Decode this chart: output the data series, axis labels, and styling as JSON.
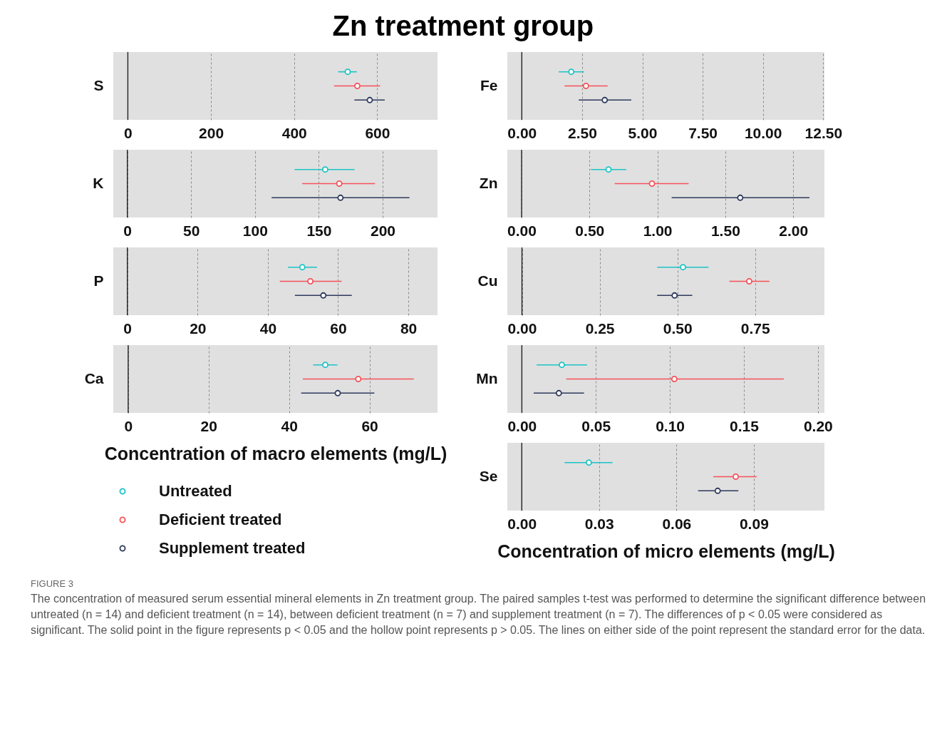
{
  "chart_data": [
    {
      "type": "scatter",
      "orientation": "horizontal",
      "title": "Zn treatment group",
      "annotations": [
        "FIGURE 3",
        "The concentration of measured serum essential mineral elements in Zn treatment group. The paired samples t-test was performed to determine the significant difference between untreated (n = 14) and deficient treatment (n = 14), between deficient treatment (n = 7) and supplement treatment (n = 7). The differences of p < 0.05 were considered as significant. The solid point in the figure represents p < 0.05 and the hollow point represents p > 0.05. The lines on either side of the point represent the standard error for the data."
      ],
      "categories": [
        "S"
      ],
      "marker": "circle",
      "grid": "x",
      "xlim": [
        -35,
        745
      ],
      "xticks": [
        0,
        200,
        400,
        600
      ],
      "ref_lines": [
        {
          "axis": "x",
          "value": 0
        }
      ],
      "legend": "bottom left",
      "series": [
        {
          "name": "Untreated",
          "color": "#1cc3c5",
          "values": [
            529
          ],
          "errors": [
            [
              506,
              551
            ]
          ]
        },
        {
          "name": "Deficient treated",
          "color": "#f5525a",
          "values": [
            552
          ],
          "errors": [
            [
              496,
              607
            ]
          ]
        },
        {
          "name": "Supplement treated",
          "color": "#2e3a5c",
          "values": [
            582
          ],
          "errors": [
            [
              545,
              618
            ]
          ]
        }
      ]
    },
    {
      "type": "scatter",
      "orientation": "horizontal",
      "categories": [
        "K"
      ],
      "marker": "circle",
      "grid": "x",
      "xlim": [
        -11,
        243
      ],
      "xticks": [
        0,
        50,
        100,
        150,
        200
      ],
      "ref_lines": [
        {
          "axis": "x",
          "value": 0
        }
      ],
      "series": [
        {
          "color": "#1cc3c5",
          "values": [
            155
          ],
          "errors": [
            [
              131,
              178
            ]
          ]
        },
        {
          "color": "#f5525a",
          "values": [
            166
          ],
          "errors": [
            [
              137,
              194
            ]
          ]
        },
        {
          "color": "#2e3a5c",
          "values": [
            167
          ],
          "errors": [
            [
              113,
              221
            ]
          ]
        }
      ]
    },
    {
      "type": "scatter",
      "orientation": "horizontal",
      "categories": [
        "P"
      ],
      "marker": "circle",
      "grid": "x",
      "xlim": [
        -4,
        88.3
      ],
      "xticks": [
        0,
        20,
        40,
        60,
        80
      ],
      "ref_lines": [
        {
          "axis": "x",
          "value": 0
        }
      ],
      "series": [
        {
          "color": "#1cc3c5",
          "values": [
            49.8
          ],
          "errors": [
            [
              45.7,
              54
            ]
          ]
        },
        {
          "color": "#f5525a",
          "values": [
            52.1
          ],
          "errors": [
            [
              43.4,
              61
            ]
          ]
        },
        {
          "color": "#2e3a5c",
          "values": [
            55.8
          ],
          "errors": [
            [
              47.7,
              63.9
            ]
          ]
        }
      ]
    },
    {
      "type": "scatter",
      "orientation": "horizontal",
      "categories": [
        "Ca"
      ],
      "marker": "circle",
      "grid": "x",
      "xlim": [
        -3.7,
        76.9
      ],
      "xticks": [
        0,
        20,
        40,
        60
      ],
      "ref_lines": [
        {
          "axis": "x",
          "value": 0
        }
      ],
      "xlabel": "Concentration of macro elements (mg/L)",
      "series": [
        {
          "color": "#1cc3c5",
          "values": [
            49
          ],
          "errors": [
            [
              46,
              52
            ]
          ]
        },
        {
          "color": "#f5525a",
          "values": [
            57.2
          ],
          "errors": [
            [
              43.4,
              71
            ]
          ]
        },
        {
          "color": "#2e3a5c",
          "values": [
            52.1
          ],
          "errors": [
            [
              43,
              61.2
            ]
          ]
        }
      ]
    },
    {
      "type": "scatter",
      "orientation": "horizontal",
      "categories": [
        "Fe"
      ],
      "marker": "circle",
      "grid": "x",
      "xlim": [
        -0.6,
        12.55
      ],
      "xticks": [
        {
          "value": 0,
          "label": "0.00"
        },
        {
          "value": 2.5,
          "label": "2.50"
        },
        {
          "value": 5,
          "label": "5.00"
        },
        {
          "value": 7.5,
          "label": "7.50"
        },
        {
          "value": 10,
          "label": "10.00"
        },
        {
          "value": 12.5,
          "label": "12.50"
        }
      ],
      "ref_lines": [
        {
          "axis": "x",
          "value": 0
        }
      ],
      "series": [
        {
          "color": "#1cc3c5",
          "values": [
            2.05
          ],
          "errors": [
            [
              1.53,
              2.58
            ]
          ]
        },
        {
          "color": "#f5525a",
          "values": [
            2.66
          ],
          "errors": [
            [
              1.77,
              3.56
            ]
          ]
        },
        {
          "color": "#2e3a5c",
          "values": [
            3.44
          ],
          "errors": [
            [
              2.36,
              4.54
            ]
          ]
        }
      ]
    },
    {
      "type": "scatter",
      "orientation": "horizontal",
      "categories": [
        "Zn"
      ],
      "marker": "circle",
      "grid": "x",
      "xlim": [
        -0.105,
        2.23
      ],
      "xticks": [
        {
          "value": 0,
          "label": "0.00"
        },
        {
          "value": 0.5,
          "label": "0.50"
        },
        {
          "value": 1,
          "label": "1.00"
        },
        {
          "value": 1.5,
          "label": "1.50"
        },
        {
          "value": 2,
          "label": "2.00"
        }
      ],
      "ref_lines": [
        {
          "axis": "x",
          "value": 0
        }
      ],
      "series": [
        {
          "color": "#1cc3c5",
          "values": [
            0.64
          ],
          "errors": [
            [
              0.51,
              0.77
            ]
          ]
        },
        {
          "color": "#f5525a",
          "values": [
            0.96
          ],
          "errors": [
            [
              0.685,
              1.23
            ]
          ]
        },
        {
          "color": "#2e3a5c",
          "values": [
            1.61
          ],
          "errors": [
            [
              1.105,
              2.12
            ]
          ]
        }
      ]
    },
    {
      "type": "scatter",
      "orientation": "horizontal",
      "categories": [
        "Cu"
      ],
      "marker": "circle",
      "grid": "x",
      "xlim": [
        -0.047,
        0.973
      ],
      "xticks": [
        {
          "value": 0,
          "label": "0.00"
        },
        0.25,
        {
          "value": 0.5,
          "label": "0.50"
        },
        0.75
      ],
      "ref_lines": [
        {
          "axis": "x",
          "value": 0
        }
      ],
      "series": [
        {
          "color": "#1cc3c5",
          "values": [
            0.518
          ],
          "errors": [
            [
              0.435,
              0.6
            ]
          ]
        },
        {
          "color": "#f5525a",
          "values": [
            0.731
          ],
          "errors": [
            [
              0.667,
              0.796
            ]
          ]
        },
        {
          "color": "#2e3a5c",
          "values": [
            0.491
          ],
          "errors": [
            [
              0.435,
              0.548
            ]
          ]
        }
      ]
    },
    {
      "type": "scatter",
      "orientation": "horizontal",
      "categories": [
        "Mn"
      ],
      "marker": "circle",
      "grid": "x",
      "xlim": [
        -0.0098,
        0.2044
      ],
      "xticks": [
        {
          "value": 0,
          "label": "0.00"
        },
        0.05,
        {
          "value": 0.1,
          "label": "0.10"
        },
        0.15,
        {
          "value": 0.2,
          "label": "0.20"
        }
      ],
      "ref_lines": [
        {
          "axis": "x",
          "value": 0
        }
      ],
      "series": [
        {
          "color": "#1cc3c5",
          "values": [
            0.027
          ],
          "errors": [
            [
              0.01,
              0.044
            ]
          ]
        },
        {
          "color": "#f5525a",
          "values": [
            0.103
          ],
          "errors": [
            [
              0.03,
              0.177
            ]
          ]
        },
        {
          "color": "#2e3a5c",
          "values": [
            0.025
          ],
          "errors": [
            [
              0.008,
              0.042
            ]
          ]
        }
      ]
    },
    {
      "type": "scatter",
      "orientation": "horizontal",
      "categories": [
        "Se"
      ],
      "marker": "circle",
      "grid": "x",
      "xlim": [
        -0.0056,
        0.1174
      ],
      "xticks": [
        {
          "value": 0,
          "label": "0.00"
        },
        0.03,
        0.06,
        0.09
      ],
      "ref_lines": [
        {
          "axis": "x",
          "value": 0
        }
      ],
      "xlabel": "Concentration of micro elements (mg/L)",
      "series": [
        {
          "color": "#1cc3c5",
          "values": [
            0.026
          ],
          "errors": [
            [
              0.0166,
              0.0352
            ]
          ]
        },
        {
          "color": "#f5525a",
          "values": [
            0.083
          ],
          "errors": [
            [
              0.0743,
              0.0911
            ]
          ]
        },
        {
          "color": "#2e3a5c",
          "values": [
            0.076
          ],
          "errors": [
            [
              0.0684,
              0.084
            ]
          ]
        }
      ]
    }
  ]
}
